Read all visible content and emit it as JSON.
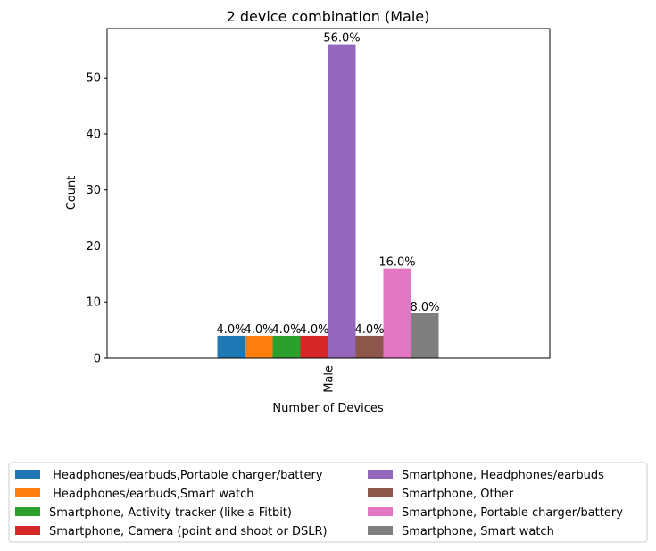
{
  "chart_data": {
    "type": "bar",
    "title": "2 device combination (Male)",
    "xlabel": "Number of Devices",
    "ylabel": "Count",
    "categories": [
      "Male"
    ],
    "ylim": [
      0,
      58.8
    ],
    "yticks": [
      0,
      10,
      20,
      30,
      40,
      50
    ],
    "grid": false,
    "legend_placement": "bottom-center",
    "series": [
      {
        "name": " Headphones/earbuds,Portable charger/battery",
        "values": [
          4
        ],
        "label": "4.0%",
        "color": "#1f77b4"
      },
      {
        "name": " Headphones/earbuds,Smart watch",
        "values": [
          4
        ],
        "label": "4.0%",
        "color": "#ff7f0e"
      },
      {
        "name": "Smartphone, Activity tracker (like a Fitbit)",
        "values": [
          4
        ],
        "label": "4.0%",
        "color": "#2ca02c"
      },
      {
        "name": "Smartphone, Camera (point and shoot or DSLR)",
        "values": [
          4
        ],
        "label": "4.0%",
        "color": "#d62728"
      },
      {
        "name": "Smartphone, Headphones/earbuds",
        "values": [
          56
        ],
        "label": "56.0%",
        "color": "#9467bd"
      },
      {
        "name": "Smartphone, Other",
        "values": [
          4
        ],
        "label": "4.0%",
        "color": "#8c564b"
      },
      {
        "name": "Smartphone, Portable charger/battery",
        "values": [
          16
        ],
        "label": "16.0%",
        "color": "#e377c2"
      },
      {
        "name": "Smartphone, Smart watch",
        "values": [
          8
        ],
        "label": "8.0%",
        "color": "#7f7f7f"
      }
    ]
  }
}
